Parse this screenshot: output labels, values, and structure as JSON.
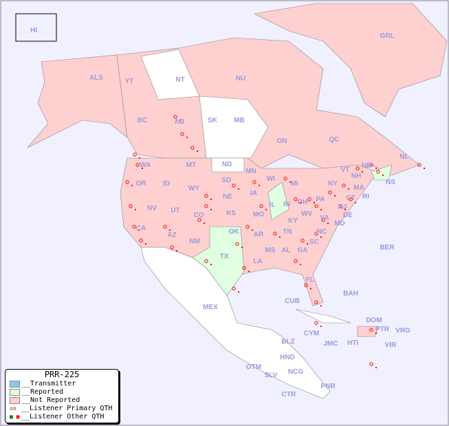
{
  "legend": {
    "title": "PRR-225",
    "items": [
      {
        "label": "__Transmitter",
        "color": "#88ccee"
      },
      {
        "label": "__Reported",
        "color": "#e0ffe0"
      },
      {
        "label": "__Not Reported",
        "color": "#ffd0d0"
      },
      {
        "label": "__Listener Primary QTH",
        "icon": "open-circle"
      },
      {
        "label": "__Listener Other QTH",
        "icon": "filled-square"
      }
    ]
  },
  "colors": {
    "ocean": "#f0f0ff",
    "not_reported": "#ffd0d0",
    "reported": "#e0ffe0",
    "no_data": "#ffffff",
    "listener": "#ff0000",
    "label": "#9a9ae0"
  },
  "regions": [
    "HI",
    "ALS",
    "YT",
    "NT",
    "NU",
    "GRL",
    "BC",
    "AB",
    "SK",
    "MB",
    "ON",
    "QC",
    "NL",
    "NB",
    "NS",
    "WA",
    "OR",
    "ID",
    "MT",
    "ND",
    "MN",
    "WI",
    "MI",
    "NY",
    "VT",
    "NH",
    "MA",
    "CT",
    "RI",
    "NJ",
    "PA",
    "DE",
    "MD",
    "WV",
    "VA",
    "OH",
    "IN",
    "IL",
    "IA",
    "SD",
    "WY",
    "NE",
    "NV",
    "UT",
    "CO",
    "KS",
    "MO",
    "KY",
    "TN",
    "NC",
    "SC",
    "GA",
    "AL",
    "MS",
    "AR",
    "LA",
    "OK",
    "TX",
    "NM",
    "AZ",
    "CA",
    "FL",
    "BER",
    "BAH",
    "CUB",
    "MEX",
    "CYM",
    "JMC",
    "HTI",
    "DOM",
    "PTR",
    "VRG",
    "VIR",
    "BLZ",
    "HND",
    "GTM",
    "SLV",
    "NCG",
    "CTR",
    "PNR"
  ]
}
